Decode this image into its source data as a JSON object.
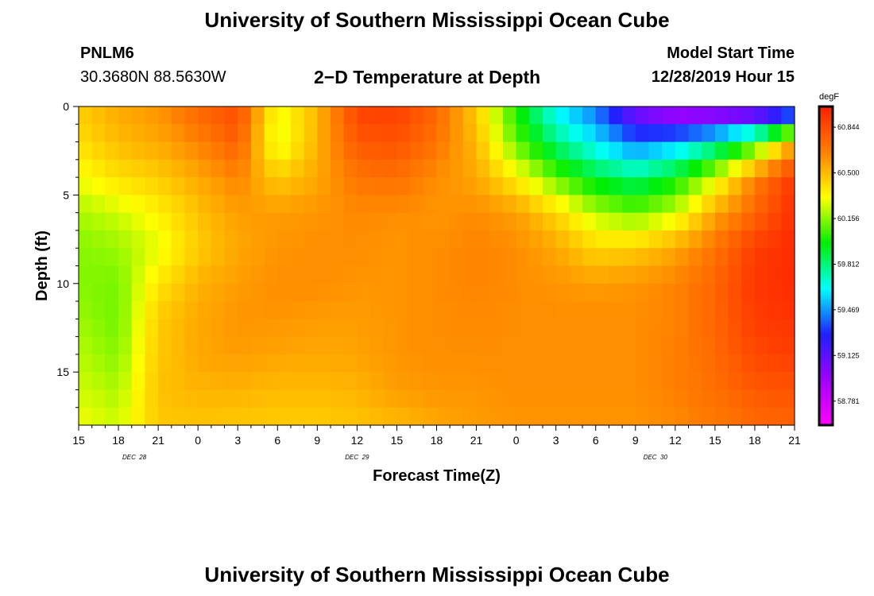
{
  "header": {
    "title": "University of Southern Mississippi Ocean Cube",
    "footer_title": "University of Southern Mississippi Ocean Cube",
    "station": "PNLM6",
    "coords": "30.3680N 88.5630W",
    "plot_title": "2−D Temperature at Depth",
    "model_start_label": "Model Start Time",
    "model_start_value": "12/28/2019 Hour 15"
  },
  "chart_data": {
    "type": "heatmap",
    "xlabel": "Forecast Time(Z)",
    "ylabel": "Depth (ft)",
    "x_tick_labels": [
      "15",
      "18",
      "21",
      "0",
      "3",
      "6",
      "9",
      "12",
      "15",
      "18",
      "21",
      "0",
      "3",
      "6",
      "9",
      "12",
      "15",
      "18",
      "21"
    ],
    "date_labels": [
      {
        "label": "DEC 28",
        "tick_index": 1.4
      },
      {
        "label": "DEC 29",
        "tick_index": 7
      },
      {
        "label": "DEC 30",
        "tick_index": 14.5
      }
    ],
    "x_range_hours": [
      0,
      54
    ],
    "y_ticks": [
      0,
      5,
      10,
      15
    ],
    "y_range": [
      0,
      18
    ],
    "colorbar": {
      "unit": "degF",
      "labels": [
        "60.844",
        "60.500",
        "60.156",
        "59.812",
        "59.469",
        "59.125",
        "58.781"
      ],
      "range": [
        58.6,
        61.0
      ],
      "colors_low_to_high": [
        "#ff00ff",
        "#a000ff",
        "#2020ff",
        "#00ffff",
        "#00ee00",
        "#ffff00",
        "#ff8000",
        "#ff2000"
      ]
    },
    "time_hours": [
      0,
      3,
      6,
      9,
      12,
      15,
      18,
      21,
      24,
      27,
      30,
      33,
      36,
      39,
      42,
      45,
      48,
      51,
      54
    ],
    "depths_ft": [
      0,
      2,
      4,
      6,
      8,
      10,
      12,
      14,
      16,
      18
    ],
    "temperature_degF": [
      [
        60.45,
        60.55,
        60.6,
        60.75,
        60.85,
        60.3,
        60.5,
        60.88,
        60.9,
        60.75,
        60.45,
        60.0,
        59.6,
        59.4,
        59.0,
        58.8,
        58.78,
        58.8,
        59.0
      ],
      [
        60.4,
        60.5,
        60.55,
        60.65,
        60.78,
        60.25,
        60.52,
        60.8,
        60.82,
        60.7,
        60.5,
        60.1,
        59.8,
        59.6,
        59.4,
        59.5,
        59.7,
        60.0,
        60.55
      ],
      [
        60.3,
        60.4,
        60.45,
        60.55,
        60.65,
        60.45,
        60.55,
        60.7,
        60.72,
        60.62,
        60.55,
        60.35,
        60.1,
        59.9,
        59.8,
        59.95,
        60.25,
        60.65,
        60.92
      ],
      [
        60.2,
        60.25,
        60.35,
        60.48,
        60.58,
        60.58,
        60.6,
        60.63,
        60.62,
        60.6,
        60.62,
        60.58,
        60.42,
        60.22,
        60.12,
        60.25,
        60.55,
        60.75,
        60.95
      ],
      [
        60.15,
        60.18,
        60.28,
        60.45,
        60.55,
        60.6,
        60.62,
        60.62,
        60.6,
        60.62,
        60.65,
        60.62,
        60.55,
        60.42,
        60.45,
        60.55,
        60.7,
        60.9,
        60.96
      ],
      [
        60.15,
        60.13,
        60.38,
        60.52,
        60.58,
        60.62,
        60.62,
        60.6,
        60.6,
        60.62,
        60.65,
        60.62,
        60.6,
        60.58,
        60.6,
        60.65,
        60.75,
        60.92,
        60.96
      ],
      [
        60.18,
        60.12,
        60.45,
        60.55,
        60.6,
        60.6,
        60.58,
        60.58,
        60.6,
        60.62,
        60.63,
        60.62,
        60.62,
        60.62,
        60.62,
        60.65,
        60.75,
        60.9,
        60.93
      ],
      [
        60.22,
        60.15,
        60.46,
        60.55,
        60.58,
        60.56,
        60.55,
        60.56,
        60.6,
        60.62,
        60.62,
        60.62,
        60.62,
        60.62,
        60.62,
        60.66,
        60.74,
        60.86,
        60.9
      ],
      [
        60.25,
        60.2,
        60.48,
        60.52,
        60.52,
        60.5,
        60.5,
        60.52,
        60.58,
        60.6,
        60.6,
        60.62,
        60.62,
        60.62,
        60.62,
        60.66,
        60.72,
        60.8,
        60.82
      ],
      [
        60.3,
        60.25,
        60.46,
        60.47,
        60.46,
        60.45,
        60.45,
        60.47,
        60.5,
        60.55,
        60.58,
        60.6,
        60.6,
        60.6,
        60.6,
        60.63,
        60.68,
        60.74,
        60.76
      ]
    ]
  }
}
